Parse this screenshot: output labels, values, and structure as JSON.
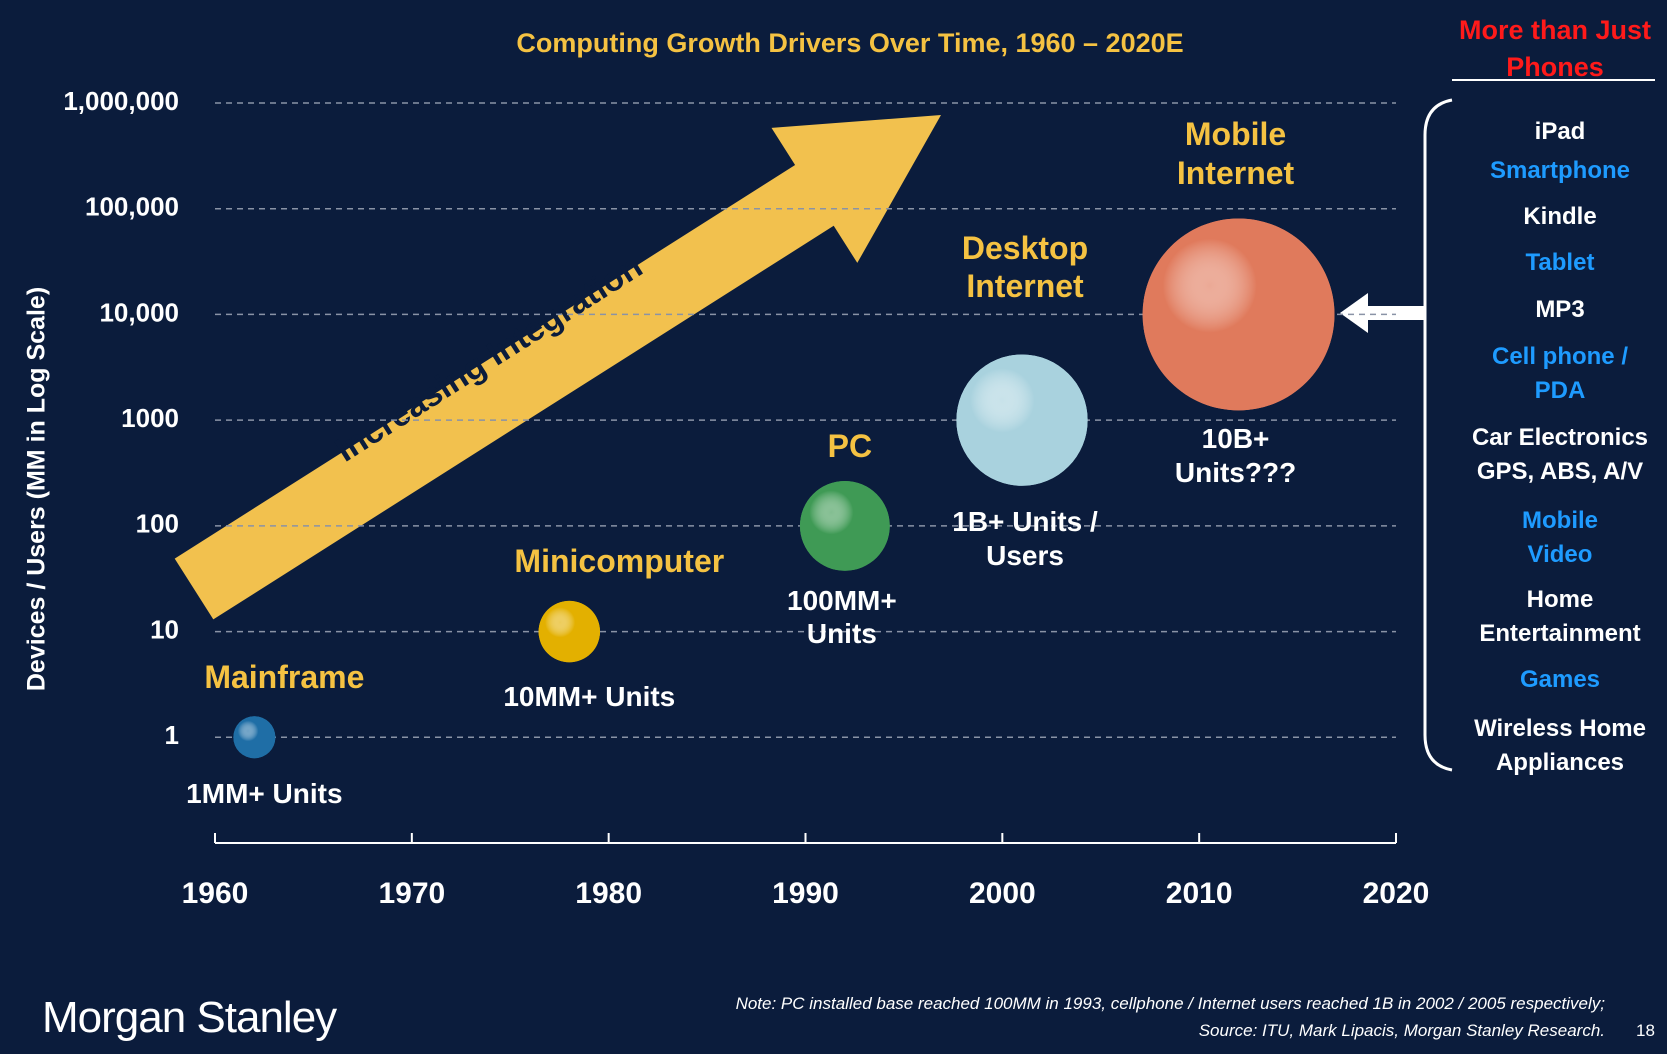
{
  "chart_data": {
    "type": "bubble",
    "title": "Computing Growth Drivers Over Time, 1960 – 2020E",
    "y_label": "Devices / Users (MM in Log Scale)",
    "annotation": "Increasing Integration",
    "log_y": true,
    "grid": true,
    "labels": [
      "Mainframe",
      "Minicomputer",
      "PC",
      "Desktop Internet",
      "Mobile Internet"
    ],
    "x": [
      1962,
      1978,
      1992,
      2001,
      2012
    ],
    "values": [
      1,
      10,
      100,
      1000,
      10000
    ],
    "value_labels": [
      "1MM+ Units",
      "10MM+ Units",
      "100MM+ Units",
      "1B+ Units / Users",
      "10B+ Units???"
    ],
    "colors": [
      "#1f6ea6",
      "#e3b000",
      "#3f9a55",
      "#a9d2de",
      "#e07a5c"
    ],
    "label_color": "#f5c242",
    "xlim": [
      1960,
      2020
    ],
    "xticks": [
      1960,
      1970,
      1980,
      1990,
      2000,
      2010,
      2020
    ],
    "ylim": [
      0.1,
      1000000
    ],
    "yticks": [
      1,
      10,
      100,
      1000,
      {
        "value": 10000,
        "label": "10,000"
      },
      {
        "value": 100000,
        "label": "100,000"
      },
      {
        "value": 1000000,
        "label": "1,000,000"
      }
    ]
  },
  "side_panel": {
    "title": "More than Just Phones",
    "items": [
      {
        "lines": [
          "iPad"
        ],
        "color": "#ffffff"
      },
      {
        "lines": [
          "Smartphone"
        ],
        "color": "#1e9bff"
      },
      {
        "lines": [
          "Kindle"
        ],
        "color": "#ffffff"
      },
      {
        "lines": [
          "Tablet"
        ],
        "color": "#1e9bff"
      },
      {
        "lines": [
          "MP3"
        ],
        "color": "#ffffff"
      },
      {
        "lines": [
          "Cell phone /",
          "PDA"
        ],
        "color": "#1e9bff"
      },
      {
        "lines": [
          "Car Electronics",
          "GPS, ABS, A/V"
        ],
        "color": "#ffffff"
      },
      {
        "lines": [
          "Mobile",
          "Video"
        ],
        "color": "#1e9bff"
      },
      {
        "lines": [
          "Home",
          "Entertainment"
        ],
        "color": "#ffffff"
      },
      {
        "lines": [
          "Games"
        ],
        "color": "#1e9bff"
      },
      {
        "lines": [
          "Wireless Home",
          "Appliances"
        ],
        "color": "#ffffff"
      }
    ]
  },
  "footer": {
    "brand": "Morgan Stanley",
    "note": "Note: PC installed base reached 100MM in 1993, cellphone / Internet users reached 1B in 2002 / 2005 respectively;",
    "source": "Source: ITU, Mark Lipacis, Morgan Stanley Research.",
    "page": 18
  }
}
